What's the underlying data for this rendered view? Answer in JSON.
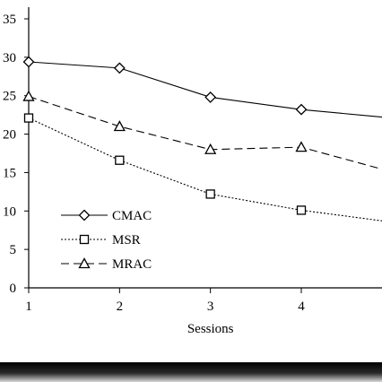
{
  "chart_data": {
    "type": "line",
    "xlabel": "Sessions",
    "ylabel": "",
    "title": "",
    "xlim": [
      1,
      4.9
    ],
    "ylim": [
      0,
      35
    ],
    "x_ticks": [
      "1",
      "2",
      "3",
      "4"
    ],
    "y_ticks": [
      "0",
      "5",
      "10",
      "15",
      "20",
      "25",
      "30",
      "35"
    ],
    "grid": false,
    "legend_position": "lower-left",
    "series": [
      {
        "name": "CMAC",
        "marker": "diamond",
        "line_style": "solid",
        "color": "#000000",
        "points": [
          [
            1,
            29.4
          ],
          [
            2,
            28.6
          ],
          [
            3,
            24.8
          ],
          [
            4,
            23.2
          ],
          [
            4.9,
            22.2
          ]
        ],
        "marked_x": [
          1,
          2,
          3,
          4
        ]
      },
      {
        "name": "MSR",
        "marker": "square",
        "line_style": "dotted",
        "color": "#000000",
        "points": [
          [
            1,
            22.1
          ],
          [
            2,
            16.6
          ],
          [
            3,
            12.2
          ],
          [
            4,
            10.1
          ],
          [
            4.9,
            8.7
          ]
        ],
        "marked_x": [
          1,
          2,
          3,
          4
        ]
      },
      {
        "name": "MRAC",
        "marker": "triangle",
        "line_style": "dashed",
        "color": "#000000",
        "points": [
          [
            1,
            24.9
          ],
          [
            2,
            21.0
          ],
          [
            3,
            18.0
          ],
          [
            4,
            18.3
          ],
          [
            4.9,
            15.4
          ]
        ],
        "marked_x": [
          1,
          2,
          3,
          4
        ]
      }
    ]
  }
}
